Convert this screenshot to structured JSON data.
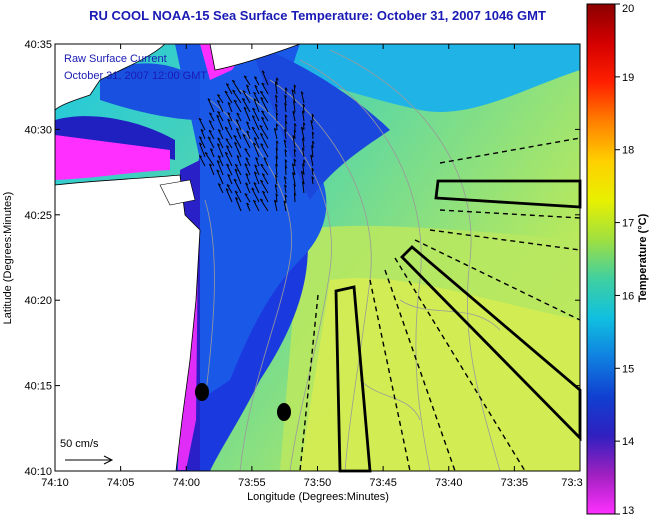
{
  "title": "RU COOL  NOAA-15  Sea Surface Temperature:  October 31, 2007 1046 GMT",
  "legend": {
    "line1": "Raw Surface Current",
    "line2": "October 31, 2007 12:00 GMT"
  },
  "scale_label": "50 cm/s",
  "axes": {
    "xlabel": "Longitude (Degrees:Minutes)",
    "ylabel": "Latitude (Degrees:Minutes)",
    "x_ticks": [
      "74:10",
      "74:05",
      "74:00",
      "73:55",
      "73:50",
      "73:45",
      "73:40",
      "73:35",
      "73:3"
    ],
    "y_ticks": [
      "40:35",
      "40:30",
      "40:25",
      "40:20",
      "40:15",
      "40:10"
    ]
  },
  "colorbar": {
    "label": "Temperature (°C)",
    "ticks": [
      "20",
      "19",
      "18",
      "17",
      "16",
      "15",
      "14",
      "13"
    ],
    "colors": [
      "#8b0000",
      "#d40000",
      "#ff2000",
      "#ff8000",
      "#ffd000",
      "#e8f000",
      "#a0e040",
      "#40d0a0",
      "#10c0e0",
      "#1080e0",
      "#1040d0",
      "#3020c0",
      "#a020c0",
      "#ff30ff"
    ]
  }
}
